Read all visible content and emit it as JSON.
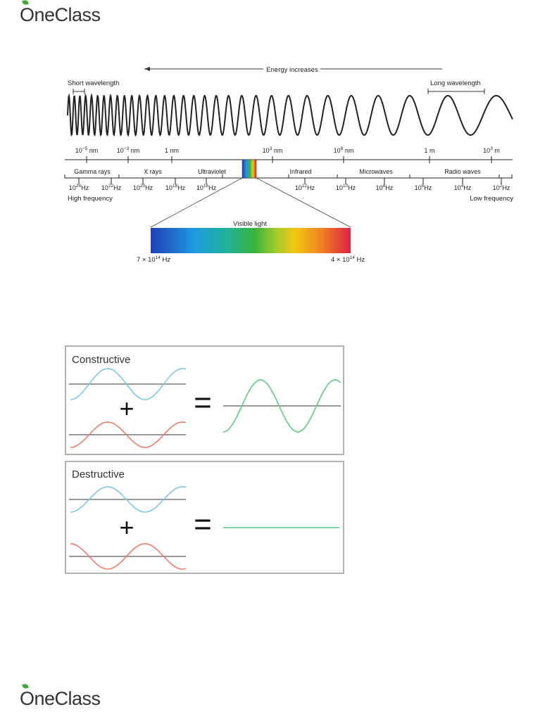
{
  "logo": {
    "text": "OneClass"
  },
  "spectrum": {
    "energy_label": "Energy increases",
    "short_wavelength_label": "Short wavelength",
    "long_wavelength_label": "Long wavelength",
    "wavelength_ticks": [
      {
        "base": "10",
        "exp": "−5",
        "unit": " nm"
      },
      {
        "base": "10",
        "exp": "−3",
        "unit": " nm"
      },
      {
        "base": "1 nm",
        "exp": "",
        "unit": ""
      },
      {
        "base": "10",
        "exp": "3",
        "unit": " nm"
      },
      {
        "base": "10",
        "exp": "6",
        "unit": " nm"
      },
      {
        "base": "1 m",
        "exp": "",
        "unit": ""
      },
      {
        "base": "10",
        "exp": "3",
        "unit": " m"
      }
    ],
    "regions": [
      "Gamma rays",
      "X rays",
      "Ultraviolet",
      "Infrared",
      "Microwaves",
      "Radio waves"
    ],
    "frequency_ticks": [
      {
        "exp": "24"
      },
      {
        "exp": "22"
      },
      {
        "exp": "20"
      },
      {
        "exp": "18"
      },
      {
        "exp": "16"
      },
      {
        "exp": "12"
      },
      {
        "exp": "10"
      },
      {
        "exp": "8"
      },
      {
        "exp": "6"
      },
      {
        "exp": "4"
      },
      {
        "exp": "2"
      }
    ],
    "frequency_base": "10",
    "frequency_unit": "Hz",
    "high_frequency_label": "High frequency",
    "low_frequency_label": "Low frequency",
    "visible_label": "Visible light",
    "visible_left": {
      "prefix": "7 × 10",
      "exp": "14",
      "unit": " Hz"
    },
    "visible_right": {
      "prefix": "4 × 10",
      "exp": "14",
      "unit": " Hz"
    }
  },
  "interference": {
    "constructive_title": "Constructive",
    "destructive_title": "Destructive",
    "plus_symbol": "+",
    "equals_symbol": "=",
    "colors": {
      "wave_a": "#7cc8ea",
      "wave_b": "#ef7b6b",
      "result": "#6ccf8e",
      "axis": "#777777"
    }
  }
}
